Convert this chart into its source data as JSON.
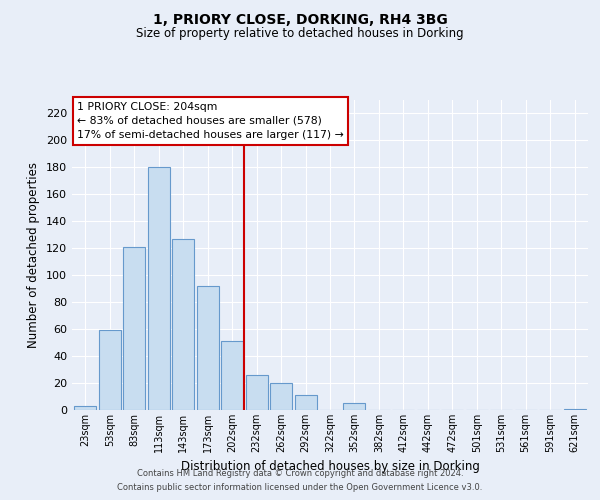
{
  "title": "1, PRIORY CLOSE, DORKING, RH4 3BG",
  "subtitle": "Size of property relative to detached houses in Dorking",
  "xlabel": "Distribution of detached houses by size in Dorking",
  "ylabel": "Number of detached properties",
  "bar_color": "#c8ddf0",
  "bar_edge_color": "#6699cc",
  "background_color": "#e8eef8",
  "grid_color": "#ffffff",
  "bin_labels": [
    "23sqm",
    "53sqm",
    "83sqm",
    "113sqm",
    "143sqm",
    "173sqm",
    "202sqm",
    "232sqm",
    "262sqm",
    "292sqm",
    "322sqm",
    "352sqm",
    "382sqm",
    "412sqm",
    "442sqm",
    "472sqm",
    "501sqm",
    "531sqm",
    "561sqm",
    "591sqm",
    "621sqm"
  ],
  "bar_heights": [
    3,
    59,
    121,
    180,
    127,
    92,
    51,
    26,
    20,
    11,
    0,
    5,
    0,
    0,
    0,
    0,
    0,
    0,
    0,
    0,
    1
  ],
  "ylim": [
    0,
    230
  ],
  "yticks": [
    0,
    20,
    40,
    60,
    80,
    100,
    120,
    140,
    160,
    180,
    200,
    220
  ],
  "vline_color": "#cc0000",
  "annotation_title": "1 PRIORY CLOSE: 204sqm",
  "annotation_line1": "← 83% of detached houses are smaller (578)",
  "annotation_line2": "17% of semi-detached houses are larger (117) →",
  "annotation_box_color": "#ffffff",
  "annotation_box_edge": "#cc0000",
  "footer_line1": "Contains HM Land Registry data © Crown copyright and database right 2024.",
  "footer_line2": "Contains public sector information licensed under the Open Government Licence v3.0."
}
